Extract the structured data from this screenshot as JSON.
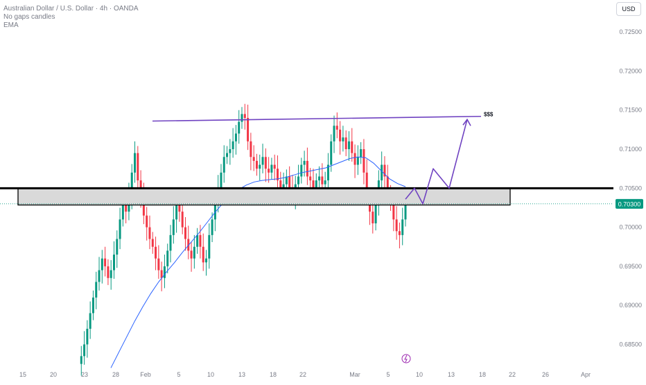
{
  "header": {
    "title": "Australian Dollar / U.S. Dollar · 4h · OANDA",
    "line2": "No gaps candles",
    "line3": "EMA"
  },
  "currency_button": "USD",
  "colors": {
    "bull": "#089981",
    "bear": "#f23645",
    "ema": "#2962ff",
    "annotation": "#6f42c1",
    "level": "#000000",
    "zone_fill": "#d9d9d9",
    "price_tag": "#089981",
    "axis_text": "#787b86"
  },
  "chart_data": {
    "type": "candlestick",
    "symbol": "Australian Dollar / U.S. Dollar",
    "timeframe": "4h",
    "broker": "OANDA",
    "ylim": [
      0.6822,
      0.7291
    ],
    "y_ticks": [
      0.685,
      0.69,
      0.695,
      0.7,
      0.705,
      0.71,
      0.715,
      0.72,
      0.725
    ],
    "y_tick_labels": [
      "0.68500",
      "0.69000",
      "0.69500",
      "0.70000",
      "0.70500",
      "0.71000",
      "0.71500",
      "0.72000",
      "0.72500"
    ],
    "x_tick_labels": [
      "15",
      "20",
      "23",
      "28",
      "Feb",
      "5",
      "10",
      "13",
      "18",
      "22",
      "Mar",
      "5",
      "10",
      "13",
      "18",
      "22",
      "26",
      "Apr"
    ],
    "last_price": "0.70300",
    "grid": false,
    "price_path": [
      0.6825,
      0.6835,
      0.685,
      0.687,
      0.689,
      0.691,
      0.693,
      0.6945,
      0.696,
      0.695,
      0.6935,
      0.6945,
      0.6965,
      0.6985,
      0.701,
      0.703,
      0.702,
      0.704,
      0.707,
      0.7095,
      0.706,
      0.704,
      0.7015,
      0.7,
      0.6985,
      0.6975,
      0.696,
      0.6945,
      0.6935,
      0.695,
      0.697,
      0.699,
      0.701,
      0.703,
      0.702,
      0.7,
      0.6985,
      0.697,
      0.696,
      0.6975,
      0.699,
      0.6975,
      0.6955,
      0.696,
      0.699,
      0.701,
      0.703,
      0.705,
      0.707,
      0.709,
      0.7095,
      0.71,
      0.711,
      0.712,
      0.7135,
      0.7145,
      0.714,
      0.711,
      0.709,
      0.7085,
      0.7075,
      0.708,
      0.709,
      0.7075,
      0.707,
      0.708,
      0.7075,
      0.706,
      0.705,
      0.7055,
      0.7065,
      0.705,
      0.704,
      0.7055,
      0.7065,
      0.708,
      0.7085,
      0.7065,
      0.706,
      0.705,
      0.706,
      0.7065,
      0.7055,
      0.706,
      0.708,
      0.711,
      0.713,
      0.7125,
      0.711,
      0.7115,
      0.71,
      0.711,
      0.7095,
      0.708,
      0.709,
      0.71,
      0.707,
      0.704,
      0.702,
      0.7005,
      0.703,
      0.706,
      0.708,
      0.7065,
      0.7045,
      0.703,
      0.701,
      0.6995,
      0.699,
      0.701,
      0.703
    ],
    "ema_path": [
      0.682,
      0.684,
      0.686,
      0.688,
      0.6898,
      0.6915,
      0.693,
      0.6943,
      0.6955,
      0.6968,
      0.698,
      0.6992,
      0.7005,
      0.7018,
      0.703,
      0.704,
      0.7048,
      0.7054,
      0.7058,
      0.706,
      0.7061,
      0.7062,
      0.7064,
      0.7067,
      0.707,
      0.7072,
      0.7074,
      0.7076,
      0.708,
      0.7084,
      0.7088,
      0.709,
      0.7089,
      0.7082,
      0.7072,
      0.7062,
      0.7056,
      0.7052
    ],
    "annotations": {
      "target_level": 0.7145,
      "target_label": "$$$",
      "support_line": 0.705,
      "zone": [
        0.70285,
        0.70495
      ],
      "projection": [
        0.705,
        0.703,
        0.7075,
        0.705,
        0.7138
      ]
    },
    "zone_date_range": [
      "28",
      "22"
    ]
  }
}
